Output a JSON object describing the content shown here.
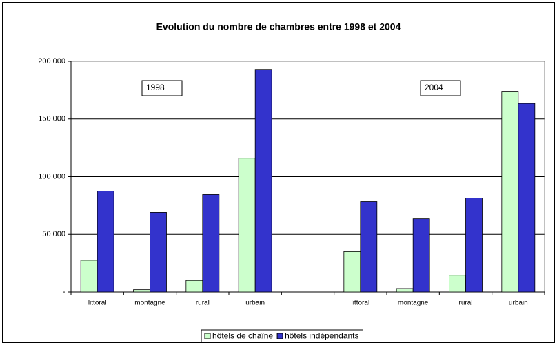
{
  "chart_data": {
    "type": "bar",
    "title": "Evolution du nombre de chambres entre 1998 et 2004",
    "categories": [
      "littoral",
      "montagne",
      "rural",
      "urbain",
      null,
      "littoral",
      "montagne",
      "rural",
      "urbain"
    ],
    "series": [
      {
        "name": "hôtels de chaîne",
        "color": "#ccffcc",
        "values": [
          27500,
          2000,
          10000,
          116000,
          null,
          35000,
          3000,
          14500,
          174000
        ]
      },
      {
        "name": "hôtels indépendants",
        "color": "#3333cc",
        "values": [
          87500,
          69000,
          84500,
          193000,
          null,
          78500,
          63500,
          81500,
          163500
        ]
      }
    ],
    "annotations": [
      "1998",
      "2004"
    ],
    "ylim": [
      0,
      200000
    ],
    "yticks": [
      {
        "value": 0,
        "label": "-"
      },
      {
        "value": 50000,
        "label": "50 000"
      },
      {
        "value": 100000,
        "label": "100 000"
      },
      {
        "value": 150000,
        "label": "150 000"
      },
      {
        "value": 200000,
        "label": "200 000"
      }
    ],
    "grid": true,
    "legend": "bottom"
  }
}
